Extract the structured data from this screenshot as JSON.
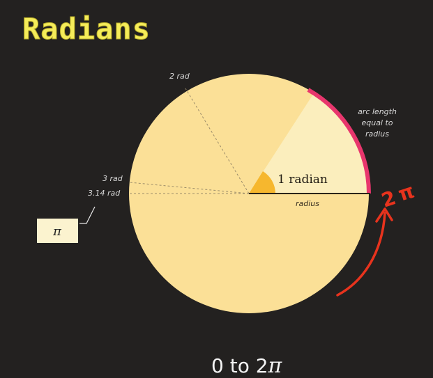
{
  "title": "Radians",
  "labels": {
    "two_rad": "2 rad",
    "three_rad": "3 rad",
    "pi_rad": "3.14 rad",
    "one_radian": "1 radian",
    "radius": "radius",
    "arc_line1": "arc length",
    "arc_line2": "equal to",
    "arc_line3": "radius",
    "pi_box": "π"
  },
  "caption": {
    "prefix": "0 to 2",
    "symbol": "π"
  },
  "annotation": {
    "two": "2",
    "pi": "π"
  },
  "colors": {
    "background": "#232120",
    "circle": "#fbe097",
    "sector": "#fbeebd",
    "angle_wedge": "#f6b72e",
    "arc_highlight": "#e8366d",
    "annotation": "#e8331d",
    "title": "#f5ec59"
  }
}
